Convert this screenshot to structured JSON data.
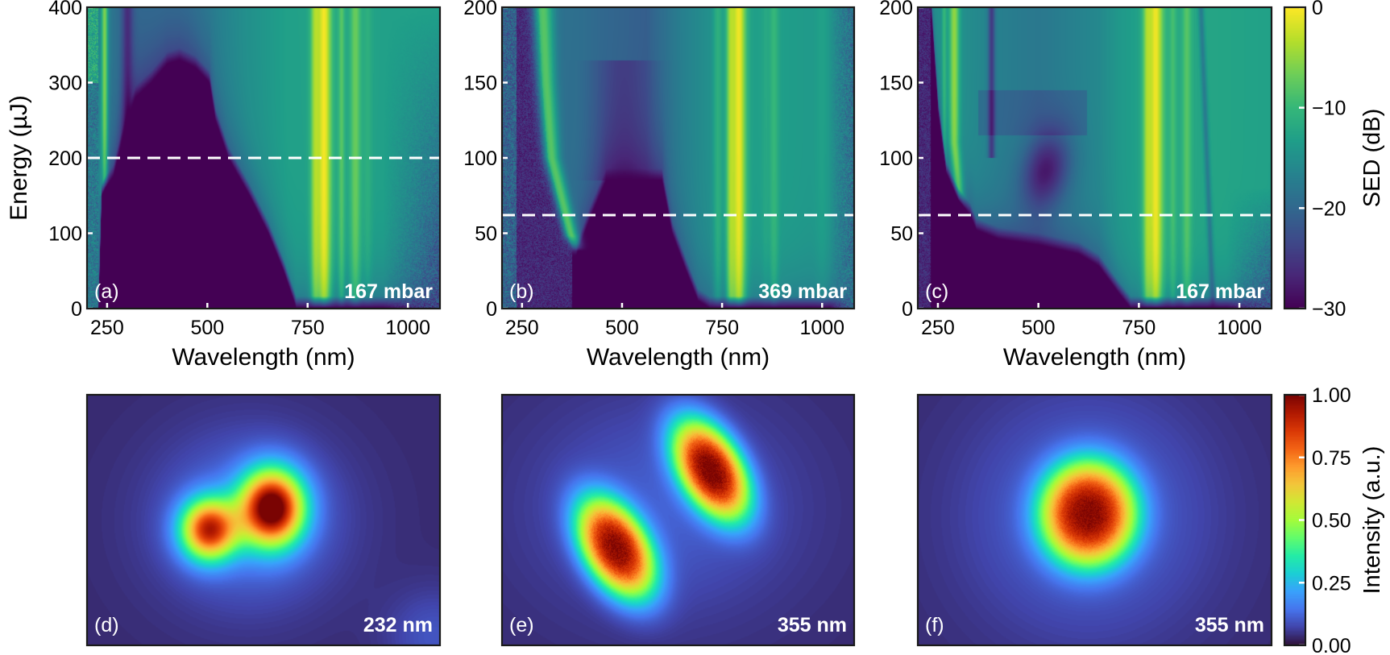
{
  "chart_data": [
    {
      "panel": "(a)",
      "type": "heatmap",
      "annotation": "167 mbar",
      "xlabel": "Wavelength (nm)",
      "ylabel": "Energy (µJ)",
      "xlim": [
        200,
        1080
      ],
      "ylim": [
        0,
        400
      ],
      "xticks": [
        250,
        500,
        750,
        1000
      ],
      "yticks": [
        0,
        100,
        200,
        300,
        400
      ],
      "dashed_line_energy": 200,
      "colormap": "viridis",
      "value_range_dB": [
        -30,
        0
      ]
    },
    {
      "panel": "(b)",
      "type": "heatmap",
      "annotation": "369 mbar",
      "xlabel": "Wavelength (nm)",
      "ylabel": "",
      "xlim": [
        200,
        1080
      ],
      "ylim": [
        0,
        200
      ],
      "xticks": [
        250,
        500,
        750,
        1000
      ],
      "yticks": [
        0,
        50,
        100,
        150,
        200
      ],
      "dashed_line_energy": 62,
      "colormap": "viridis",
      "value_range_dB": [
        -30,
        0
      ]
    },
    {
      "panel": "(c)",
      "type": "heatmap",
      "annotation": "167 mbar",
      "xlabel": "Wavelength (nm)",
      "ylabel": "",
      "xlim": [
        200,
        1080
      ],
      "ylim": [
        0,
        200
      ],
      "xticks": [
        250,
        500,
        750,
        1000
      ],
      "yticks": [
        0,
        50,
        100,
        150,
        200
      ],
      "dashed_line_energy": 62,
      "colormap": "viridis",
      "value_range_dB": [
        -30,
        0
      ]
    },
    {
      "panel": "(d)",
      "type": "heatmap",
      "annotation": "232 nm",
      "colormap": "turbo",
      "content": "two-lobe beam profile"
    },
    {
      "panel": "(e)",
      "type": "heatmap",
      "annotation": "355 nm",
      "colormap": "turbo",
      "content": "two-lobe tilted beam profile"
    },
    {
      "panel": "(f)",
      "type": "heatmap",
      "annotation": "355 nm",
      "colormap": "turbo",
      "content": "single-spot beam profile"
    }
  ],
  "colorbars": [
    {
      "label": "SED (dB)",
      "colormap": "viridis",
      "range": [
        -30,
        0
      ],
      "ticks": [
        0,
        -10,
        -20,
        -30
      ],
      "tick_labels": [
        "0",
        "−10",
        "−20",
        "−30"
      ]
    },
    {
      "label": "Intensity (a.u.)",
      "colormap": "turbo",
      "range": [
        0,
        1
      ],
      "ticks": [
        1,
        0.75,
        0.5,
        0.25,
        0
      ],
      "tick_labels": [
        "1.00",
        "0.75",
        "0.50",
        "0.25",
        "0.00"
      ]
    }
  ],
  "colors": {
    "dashed_line": "#ffffff",
    "annotation_text": "#ffffff",
    "tick_marks": "#ffffff",
    "frame": "#1a1a1a"
  }
}
